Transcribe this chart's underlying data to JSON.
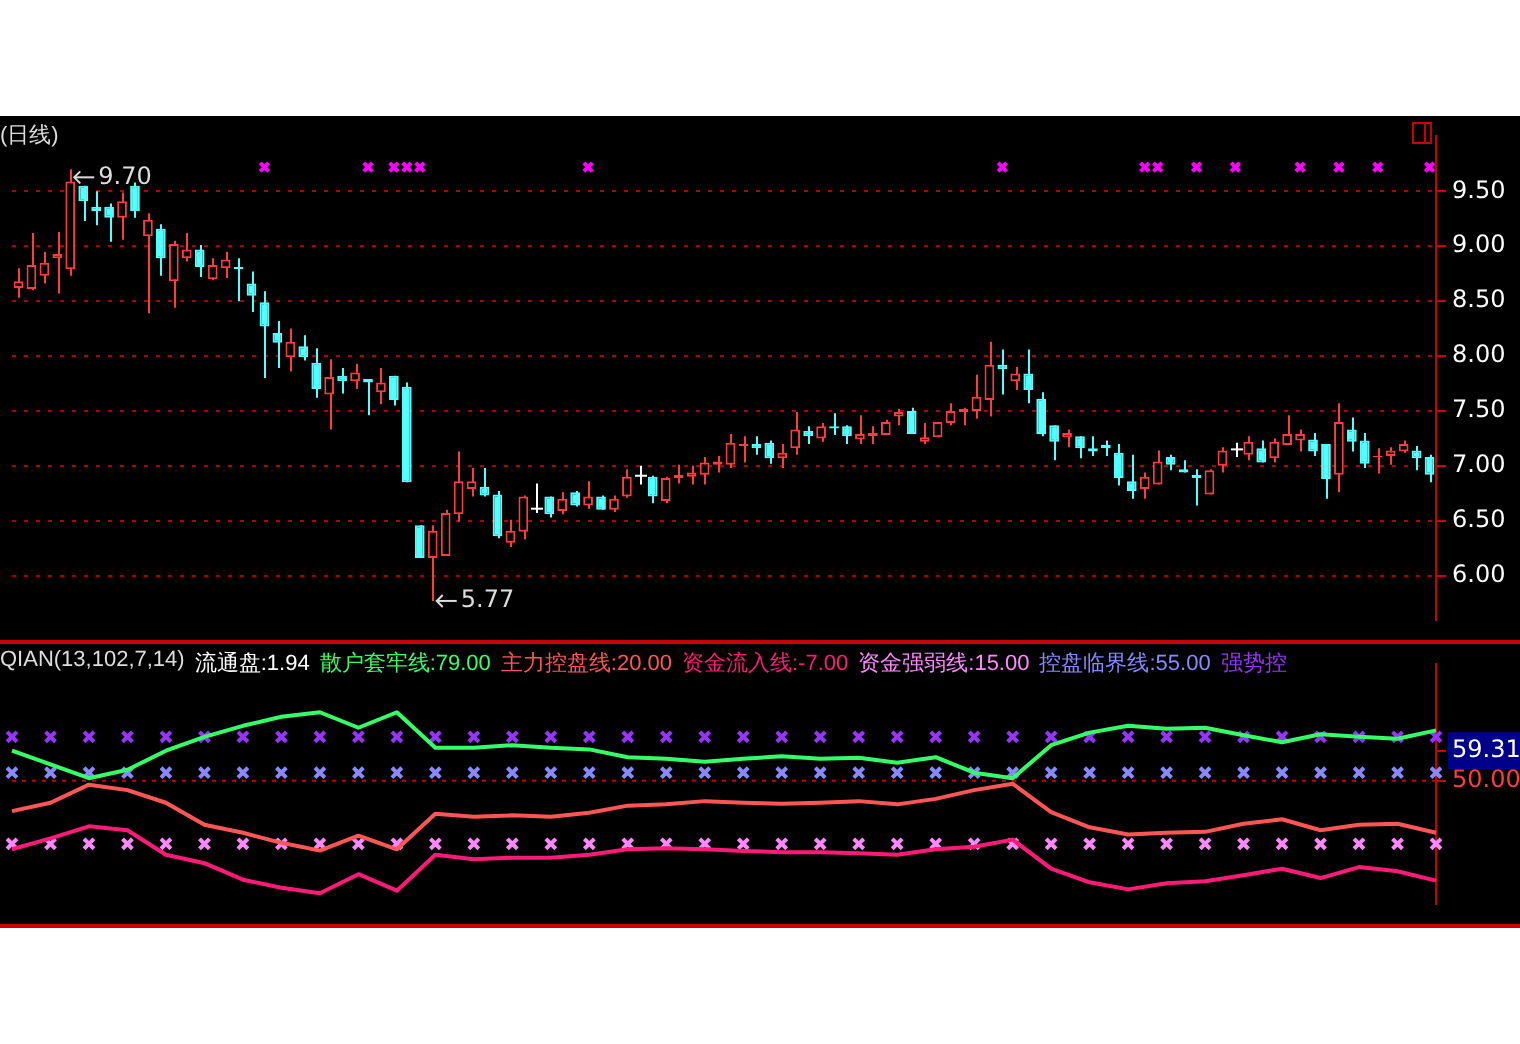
{
  "chart_data": [
    {
      "type": "candlestick",
      "title": "(日线)",
      "tick_labels": "y",
      "grid": "y",
      "marker": "cross",
      "ylim": [
        5.6,
        10
      ],
      "yticks": [
        {
          "value": 6,
          "label": "6.00"
        },
        {
          "value": 6.5,
          "label": "6.50"
        },
        {
          "value": 7,
          "label": "7.00"
        },
        {
          "value": 7.5,
          "label": "7.50"
        },
        {
          "value": 8,
          "label": "8.00"
        },
        {
          "value": 8.5,
          "label": "8.50"
        },
        {
          "value": 9,
          "label": "9.00"
        },
        {
          "value": 9.5,
          "label": "9.50"
        }
      ],
      "annotations": [
        "9.70",
        "5.77"
      ],
      "categories": [
        null,
        null,
        null,
        null,
        null,
        null,
        null,
        null,
        null,
        null,
        null,
        null,
        null,
        null,
        null,
        null,
        null,
        null,
        null,
        null,
        null,
        null,
        null,
        null,
        null,
        null,
        null,
        null,
        null,
        null,
        null,
        null,
        null,
        null,
        null,
        null,
        null,
        null,
        null,
        null,
        null,
        null,
        null,
        null,
        null,
        null,
        null,
        null,
        null,
        null,
        null,
        null,
        null,
        null,
        null,
        null,
        null,
        null,
        null,
        null,
        null,
        null,
        null,
        null,
        null,
        null,
        null,
        null,
        null,
        null,
        null,
        null,
        null,
        null,
        null,
        null,
        null,
        null,
        null,
        null,
        null,
        null,
        null,
        null,
        null,
        null,
        null,
        null,
        null,
        null,
        null,
        null,
        null,
        null,
        null,
        null,
        null,
        null,
        null,
        null,
        null,
        null,
        null,
        null,
        null,
        null,
        null,
        null,
        null,
        null
      ],
      "ohlc": [
        [
          8.62,
          8.8,
          8.53,
          8.68
        ],
        [
          8.61,
          9.12,
          8.6,
          8.83
        ],
        [
          8.73,
          8.95,
          8.66,
          8.85
        ],
        [
          8.89,
          9.13,
          8.57,
          8.93
        ],
        [
          8.79,
          9.7,
          8.73,
          9.59
        ],
        [
          9.55,
          9.55,
          9.23,
          9.41
        ],
        [
          9.36,
          9.5,
          9.19,
          9.32
        ],
        [
          9.36,
          9.39,
          9.04,
          9.26
        ],
        [
          9.26,
          9.49,
          9.06,
          9.41
        ],
        [
          9.55,
          9.58,
          9.26,
          9.32
        ],
        [
          9.09,
          9.3,
          8.39,
          9.24
        ],
        [
          9.16,
          9.2,
          8.73,
          8.89
        ],
        [
          8.68,
          9.05,
          8.44,
          9.02
        ],
        [
          8.89,
          9.12,
          8.86,
          8.97
        ],
        [
          8.97,
          9.01,
          8.72,
          8.81
        ],
        [
          8.7,
          8.89,
          8.69,
          8.83
        ],
        [
          8.8,
          8.95,
          8.71,
          8.88
        ],
        [
          8.81,
          8.89,
          8.5,
          8.79
        ],
        [
          8.66,
          8.77,
          8.4,
          8.55
        ],
        [
          8.49,
          8.59,
          7.8,
          8.27
        ],
        [
          8.21,
          8.32,
          7.89,
          8.12
        ],
        [
          7.99,
          8.25,
          7.86,
          8.13
        ],
        [
          8.09,
          8.19,
          7.96,
          7.99
        ],
        [
          7.94,
          8.07,
          7.62,
          7.7
        ],
        [
          7.65,
          7.97,
          7.33,
          7.81
        ],
        [
          7.82,
          7.89,
          7.66,
          7.77
        ],
        [
          7.77,
          7.93,
          7.7,
          7.85
        ],
        [
          7.79,
          7.79,
          7.46,
          7.76
        ],
        [
          7.67,
          7.89,
          7.56,
          7.76
        ],
        [
          7.82,
          7.82,
          7.55,
          7.6
        ],
        [
          7.72,
          7.76,
          6.85,
          6.85
        ],
        [
          6.46,
          6.46,
          6.16,
          6.16
        ],
        [
          6.16,
          6.46,
          5.77,
          6.41
        ],
        [
          6.18,
          6.6,
          6.18,
          6.57
        ],
        [
          6.56,
          7.13,
          6.49,
          6.86
        ],
        [
          6.79,
          6.98,
          6.72,
          6.86
        ],
        [
          6.81,
          6.98,
          6.72,
          6.73
        ],
        [
          6.74,
          6.77,
          6.34,
          6.36
        ],
        [
          6.3,
          6.51,
          6.26,
          6.41
        ],
        [
          6.4,
          6.73,
          6.33,
          6.72
        ],
        [
          6.61,
          6.84,
          6.57,
          6.61
        ],
        [
          6.72,
          6.72,
          6.53,
          6.56
        ],
        [
          6.59,
          6.76,
          6.56,
          6.7
        ],
        [
          6.76,
          6.77,
          6.63,
          6.64
        ],
        [
          6.64,
          6.86,
          6.61,
          6.72
        ],
        [
          6.72,
          6.73,
          6.6,
          6.6
        ],
        [
          6.6,
          6.73,
          6.58,
          6.7
        ],
        [
          6.72,
          6.97,
          6.71,
          6.9
        ],
        [
          6.91,
          7.0,
          6.83,
          6.91
        ],
        [
          6.9,
          6.91,
          6.66,
          6.72
        ],
        [
          6.68,
          6.9,
          6.66,
          6.89
        ],
        [
          6.89,
          7.01,
          6.84,
          6.92
        ],
        [
          6.9,
          7.0,
          6.83,
          6.94
        ],
        [
          6.92,
          7.08,
          6.83,
          7.03
        ],
        [
          7.01,
          7.09,
          6.94,
          7.04
        ],
        [
          7.01,
          7.29,
          6.98,
          7.21
        ],
        [
          7.18,
          7.27,
          7.03,
          7.2
        ],
        [
          7.2,
          7.27,
          7.1,
          7.16
        ],
        [
          7.21,
          7.23,
          7.02,
          7.07
        ],
        [
          7.07,
          7.2,
          6.98,
          7.12
        ],
        [
          7.16,
          7.49,
          7.1,
          7.33
        ],
        [
          7.32,
          7.36,
          7.2,
          7.27
        ],
        [
          7.25,
          7.39,
          7.22,
          7.36
        ],
        [
          7.36,
          7.48,
          7.28,
          7.34
        ],
        [
          7.36,
          7.37,
          7.2,
          7.27
        ],
        [
          7.24,
          7.46,
          7.2,
          7.29
        ],
        [
          7.27,
          7.36,
          7.2,
          7.3
        ],
        [
          7.28,
          7.42,
          7.28,
          7.4
        ],
        [
          7.45,
          7.52,
          7.37,
          7.49
        ],
        [
          7.5,
          7.53,
          7.29,
          7.29
        ],
        [
          7.22,
          7.39,
          7.2,
          7.26
        ],
        [
          7.26,
          7.4,
          7.26,
          7.4
        ],
        [
          7.39,
          7.57,
          7.37,
          7.5
        ],
        [
          7.49,
          7.53,
          7.37,
          7.52
        ],
        [
          7.5,
          7.83,
          7.43,
          7.63
        ],
        [
          7.6,
          8.13,
          7.45,
          7.92
        ],
        [
          7.92,
          8.06,
          7.65,
          7.88
        ],
        [
          7.77,
          7.9,
          7.69,
          7.84
        ],
        [
          7.84,
          8.06,
          7.57,
          7.69
        ],
        [
          7.61,
          7.67,
          7.27,
          7.29
        ],
        [
          7.37,
          7.37,
          7.05,
          7.22
        ],
        [
          7.26,
          7.33,
          7.17,
          7.3
        ],
        [
          7.27,
          7.27,
          7.07,
          7.16
        ],
        [
          7.16,
          7.27,
          7.09,
          7.13
        ],
        [
          7.19,
          7.23,
          7.09,
          7.16
        ],
        [
          7.12,
          7.2,
          6.82,
          6.89
        ],
        [
          6.86,
          7.1,
          6.7,
          6.77
        ],
        [
          6.79,
          6.94,
          6.7,
          6.9
        ],
        [
          6.83,
          7.14,
          6.83,
          7.04
        ],
        [
          7.08,
          7.1,
          6.96,
          7.01
        ],
        [
          6.97,
          7.05,
          6.94,
          6.94
        ],
        [
          6.92,
          6.97,
          6.64,
          6.89
        ],
        [
          6.74,
          6.97,
          6.74,
          6.96
        ],
        [
          7.0,
          7.17,
          6.94,
          7.14
        ],
        [
          7.15,
          7.21,
          7.08,
          7.15
        ],
        [
          7.1,
          7.27,
          7.05,
          7.22
        ],
        [
          7.16,
          7.23,
          7.03,
          7.03
        ],
        [
          7.07,
          7.25,
          7.03,
          7.22
        ],
        [
          7.19,
          7.46,
          7.19,
          7.29
        ],
        [
          7.23,
          7.33,
          7.13,
          7.29
        ],
        [
          7.24,
          7.3,
          7.09,
          7.13
        ],
        [
          7.2,
          7.2,
          6.7,
          6.88
        ],
        [
          6.92,
          7.57,
          6.76,
          7.4
        ],
        [
          7.33,
          7.44,
          7.13,
          7.22
        ],
        [
          7.23,
          7.3,
          6.98,
          7.02
        ],
        [
          7.08,
          7.16,
          6.93,
          7.09
        ],
        [
          7.09,
          7.17,
          7.01,
          7.14
        ],
        [
          7.13,
          7.23,
          7.12,
          7.2
        ],
        [
          7.14,
          7.18,
          6.96,
          7.07
        ],
        [
          7.08,
          7.1,
          6.85,
          6.92
        ]
      ],
      "series": [
        {
          "type": "scatter",
          "color": "#ff00ff",
          "values": [
            null,
            null,
            null,
            null,
            null,
            null,
            null,
            null,
            null,
            null,
            null,
            null,
            null,
            null,
            null,
            null,
            null,
            null,
            null,
            9.72,
            null,
            null,
            null,
            null,
            null,
            null,
            null,
            9.72,
            null,
            9.72,
            9.72,
            9.72,
            null,
            null,
            null,
            null,
            null,
            null,
            null,
            null,
            null,
            null,
            null,
            null,
            9.72,
            null,
            null,
            null,
            null,
            null,
            null,
            null,
            null,
            null,
            null,
            null,
            null,
            null,
            null,
            null,
            null,
            null,
            null,
            null,
            null,
            null,
            null,
            null,
            null,
            null,
            null,
            null,
            null,
            null,
            null,
            null,
            9.72,
            null,
            null,
            null,
            null,
            null,
            null,
            null,
            null,
            null,
            null,
            9.72,
            9.72,
            null,
            null,
            9.72,
            null,
            null,
            9.72,
            null,
            null,
            null,
            null,
            9.72,
            null,
            null,
            9.72,
            null,
            null,
            9.72,
            null,
            null,
            null,
            9.72
          ]
        }
      ]
    },
    {
      "type": "line",
      "title": "QIAN(13,102,7,14)",
      "annotations": [
        "流通盘:1.94"
      ],
      "legend": "top",
      "tick_labels": "y",
      "ylim": [
        12,
        86
      ],
      "yticks": [
        {
          "value": 50,
          "label": "50.00"
        },
        {
          "value": 59.31,
          "label": "59.31"
        }
      ],
      "ref_lines": [
        {
          "axis": "y",
          "value": 50,
          "color": "#cc0000",
          "line_style": "dotted"
        }
      ],
      "categories": [
        null,
        null,
        null,
        null,
        null,
        null,
        null,
        null,
        null,
        null,
        null,
        null,
        null,
        null,
        null,
        null,
        null,
        null,
        null,
        null,
        null,
        null,
        null,
        null,
        null,
        null,
        null,
        null,
        null,
        null,
        null,
        null,
        null,
        null,
        null,
        null,
        null,
        null
      ],
      "series": [
        {
          "name": "散户套牢线:79.00",
          "type": "line",
          "color": "#33ff66",
          "values": [
            59.3,
            55.1,
            50.8,
            53.4,
            59.3,
            63.6,
            67.0,
            69.8,
            71.2,
            66.4,
            71.2,
            60.2,
            60.2,
            61.0,
            60.2,
            59.7,
            57.3,
            56.8,
            55.9,
            56.8,
            57.6,
            56.8,
            57.1,
            55.6,
            57.3,
            52.5,
            50.8,
            61.0,
            64.9,
            67.0,
            66.1,
            66.4,
            64.1,
            61.9,
            64.4,
            63.6,
            63.0,
            65.6
          ]
        },
        {
          "name": "主力控盘线:20.00",
          "type": "line",
          "color": "#ff5555",
          "values": [
            40.6,
            43.2,
            48.8,
            47.1,
            43.2,
            36.4,
            33.9,
            30.8,
            28.4,
            33.0,
            28.8,
            39.8,
            38.9,
            39.3,
            38.9,
            40.1,
            42.3,
            42.7,
            43.7,
            43.2,
            42.9,
            43.2,
            43.7,
            42.7,
            44.4,
            47.1,
            49.1,
            40.3,
            35.6,
            33.4,
            33.9,
            34.2,
            36.7,
            38.1,
            34.7,
            36.4,
            36.7,
            33.9
          ]
        },
        {
          "name": "资金流入线:-7.00",
          "type": "line",
          "color": "#ff1a7a",
          "values": [
            28.8,
            32.2,
            35.9,
            34.7,
            27.1,
            24.5,
            19.4,
            16.9,
            15.2,
            21.1,
            16.0,
            27.1,
            25.7,
            26.2,
            26.2,
            27.1,
            28.8,
            29.1,
            28.8,
            28.3,
            27.9,
            27.9,
            27.6,
            27.1,
            28.8,
            29.6,
            31.8,
            22.8,
            18.6,
            16.4,
            18.3,
            18.9,
            20.8,
            22.8,
            19.9,
            23.3,
            22.0,
            19.1
          ]
        },
        {
          "name": "资金强弱线:15.00",
          "type": "scatter",
          "marker": "cross",
          "color": "#ff88ff",
          "values": [
            30.5,
            30.5,
            30.5,
            30.5,
            30.5,
            30.5,
            30.5,
            30.5,
            30.5,
            30.5,
            30.5,
            30.5,
            30.5,
            30.5,
            30.5,
            30.5,
            30.5,
            30.5,
            30.5,
            30.5,
            30.5,
            30.5,
            30.5,
            30.5,
            30.5,
            30.5,
            30.5,
            30.5,
            30.5,
            30.5,
            30.5,
            30.5,
            30.5,
            30.5,
            30.5,
            30.5,
            30.5,
            30.5
          ]
        },
        {
          "name": "控盘临界线:55.00",
          "type": "scatter",
          "marker": "cross",
          "color": "#8888ff",
          "values": [
            52.5,
            52.5,
            52.5,
            52.5,
            52.5,
            52.5,
            52.5,
            52.5,
            52.5,
            52.5,
            52.5,
            52.5,
            52.5,
            52.5,
            52.5,
            52.5,
            52.5,
            52.5,
            52.5,
            52.5,
            52.5,
            52.5,
            52.5,
            52.5,
            52.5,
            52.5,
            52.5,
            52.5,
            52.5,
            52.5,
            52.5,
            52.5,
            52.5,
            52.5,
            52.5,
            52.5,
            52.5,
            52.5
          ]
        },
        {
          "name": "强势控",
          "type": "scatter",
          "marker": "cross",
          "color": "#9933ff",
          "values": [
            63.6,
            63.6,
            63.6,
            63.6,
            63.6,
            63.6,
            63.6,
            63.6,
            63.6,
            63.6,
            63.6,
            63.6,
            63.6,
            63.6,
            63.6,
            63.6,
            63.6,
            63.6,
            63.6,
            63.6,
            63.6,
            63.6,
            63.6,
            63.6,
            63.6,
            63.6,
            63.6,
            63.6,
            63.6,
            63.6,
            63.6,
            63.6,
            63.6,
            63.6,
            63.6,
            63.6,
            63.6,
            63.6
          ]
        }
      ]
    }
  ]
}
